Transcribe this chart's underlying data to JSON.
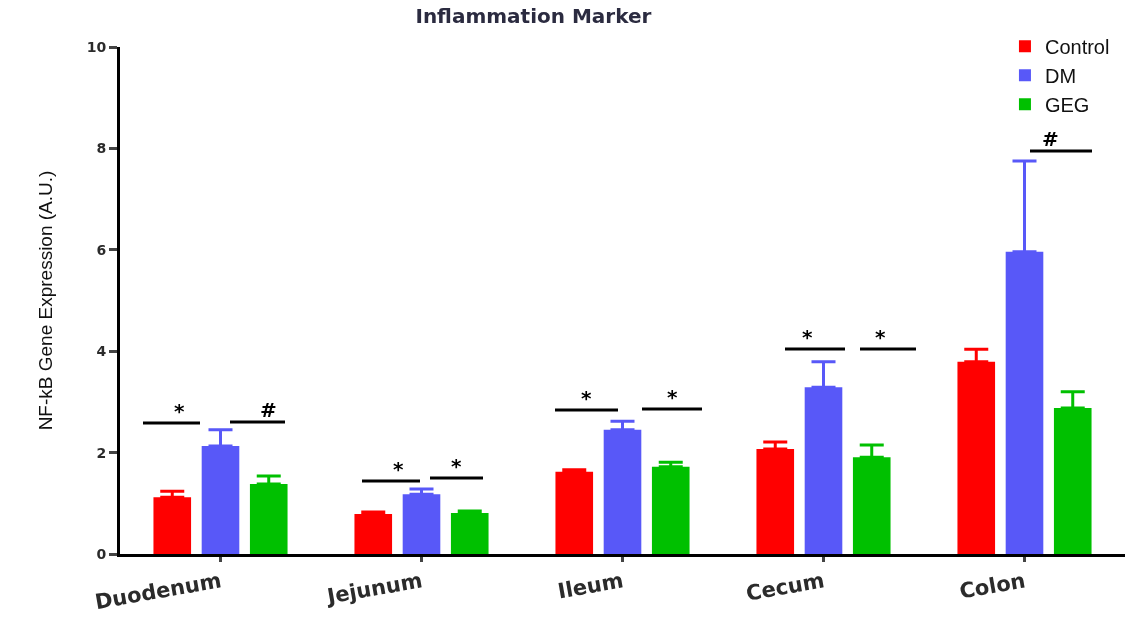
{
  "chart_data": {
    "type": "bar",
    "title": "Inflammation Marker",
    "ylabel": "NF-kB Gene Expression (A.U.)",
    "categories": [
      "Duodenum",
      "Jejunum",
      "Ileum",
      "Cecum",
      "Colon"
    ],
    "series": [
      {
        "name": "Control",
        "color": "#ff0000",
        "values": [
          1.12,
          0.79,
          1.62,
          2.07,
          3.79
        ],
        "errors": [
          [
            1.12,
            1.24
          ],
          [
            0.79,
            0.83
          ],
          [
            1.62,
            1.66
          ],
          [
            2.07,
            2.21
          ],
          [
            3.79,
            4.04
          ]
        ]
      },
      {
        "name": "DM",
        "color": "#5858f8",
        "values": [
          2.13,
          1.18,
          2.45,
          3.29,
          5.96
        ],
        "errors": [
          [
            2.13,
            2.45
          ],
          [
            1.18,
            1.28
          ],
          [
            2.45,
            2.62
          ],
          [
            3.29,
            3.79
          ],
          [
            5.96,
            7.75
          ]
        ]
      },
      {
        "name": "GEG",
        "color": "#00c000",
        "values": [
          1.38,
          0.81,
          1.72,
          1.91,
          2.88
        ],
        "errors": [
          [
            1.38,
            1.54
          ],
          [
            0.81,
            0.85
          ],
          [
            1.72,
            1.81
          ],
          [
            1.91,
            2.15
          ],
          [
            2.88,
            3.2
          ]
        ]
      }
    ],
    "ylim": [
      0,
      10
    ],
    "yticks": [
      0,
      2,
      4,
      6,
      8,
      10
    ],
    "grid": false,
    "legend": "top right",
    "annotations": [
      "*",
      "#",
      "*",
      "*",
      "*",
      "*",
      "*",
      "*",
      "#"
    ]
  }
}
